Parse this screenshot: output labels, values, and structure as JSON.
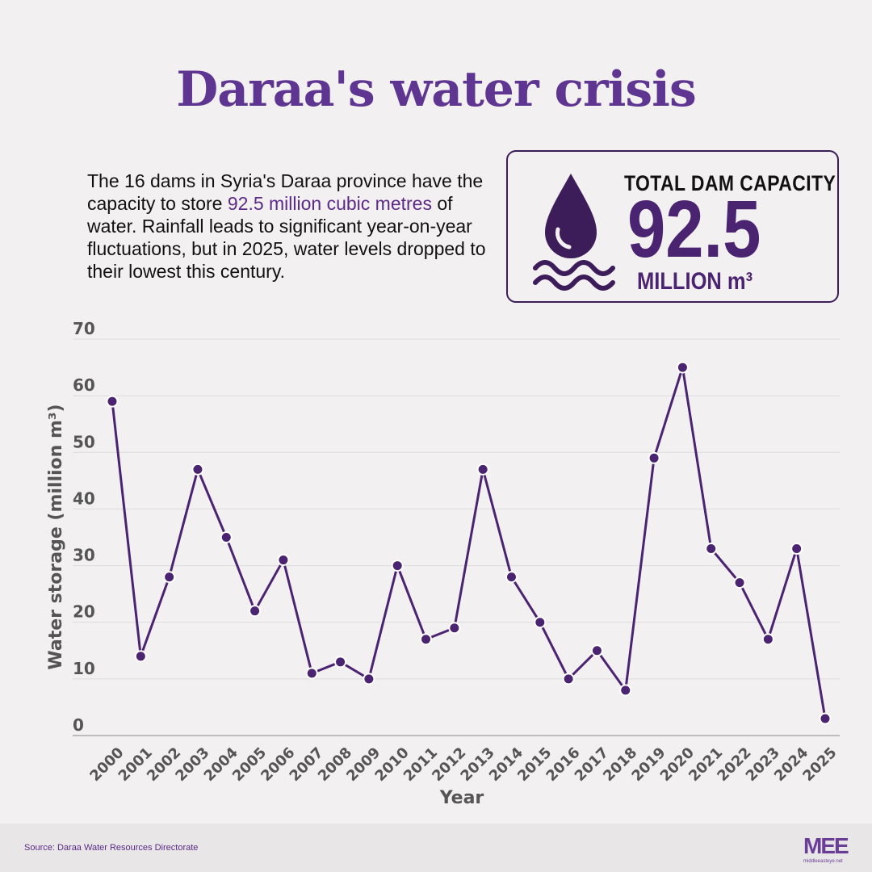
{
  "title": "Daraa's water crisis",
  "description": {
    "before": "The 16 dams in Syria's Daraa province have the capacity to store ",
    "highlight": "92.5 million cubic metres",
    "after": " of water. Rainfall leads to significant year-on-year fluctuations, but in 2025, water levels dropped to their lowest this century."
  },
  "callout": {
    "label": "TOTAL DAM CAPACITY",
    "value": "92.5",
    "unit": "MILLION m³"
  },
  "chart_data": {
    "type": "line",
    "categories": [
      "2000",
      "2001",
      "2002",
      "2003",
      "2004",
      "2005",
      "2006",
      "2007",
      "2008",
      "2009",
      "2010",
      "2011",
      "2012",
      "2013",
      "2014",
      "2015",
      "2016",
      "2017",
      "2018",
      "2019",
      "2020",
      "2021",
      "2022",
      "2023",
      "2024",
      "2025"
    ],
    "values": [
      59,
      14,
      28,
      47,
      35,
      22,
      31,
      11,
      13,
      10,
      30,
      17,
      19,
      47,
      28,
      20,
      10,
      15,
      8,
      49,
      65,
      33,
      27,
      17,
      33,
      3
    ],
    "color": "#4b2471",
    "x_label": "Year",
    "y_label": "Water storage (million m³)",
    "ylim": [
      0,
      70
    ],
    "yticks": [
      0,
      10,
      20,
      30,
      40,
      50,
      60,
      70
    ],
    "grid": true
  },
  "footer": {
    "source": "Source: Daraa Water Resources Directorate",
    "logo": "MEE",
    "site": "middleeasteye.net"
  }
}
